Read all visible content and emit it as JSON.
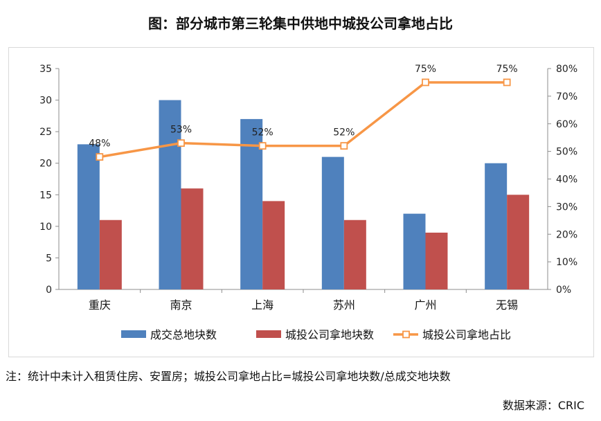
{
  "chart_data": {
    "type": "bar",
    "title": "图：部分城市第三轮集中供地中城投公司拿地占比",
    "categories": [
      "重庆",
      "南京",
      "上海",
      "苏州",
      "广州",
      "无锡"
    ],
    "series": [
      {
        "name": "成交总地块数",
        "kind": "bar",
        "axis": "left",
        "color": "#4f81bd",
        "values": [
          23,
          30,
          27,
          21,
          12,
          20
        ]
      },
      {
        "name": "城投公司拿地块数",
        "kind": "bar",
        "axis": "left",
        "color": "#c0504d",
        "values": [
          11,
          16,
          14,
          11,
          9,
          15
        ]
      },
      {
        "name": "城投公司拿地占比",
        "kind": "line",
        "axis": "right",
        "color": "#f79646",
        "values": [
          48,
          53,
          52,
          52,
          75,
          75
        ],
        "labels": [
          "48%",
          "53%",
          "52%",
          "52%",
          "75%",
          "75%"
        ]
      }
    ],
    "y_left": {
      "min": 0,
      "max": 35,
      "step": 5,
      "ticks": [
        "0",
        "5",
        "10",
        "15",
        "20",
        "25",
        "30",
        "35"
      ]
    },
    "y_right": {
      "min": 0,
      "max": 80,
      "step": 10,
      "ticks": [
        "0%",
        "10%",
        "20%",
        "30%",
        "40%",
        "50%",
        "60%",
        "70%",
        "80%"
      ]
    },
    "grid": false,
    "legend": "bottom"
  },
  "note": "注：统计中未计入租赁住房、安置房；城投公司拿地占比=城投公司拿地块数/总成交地块数",
  "source": "数据来源：CRIC"
}
